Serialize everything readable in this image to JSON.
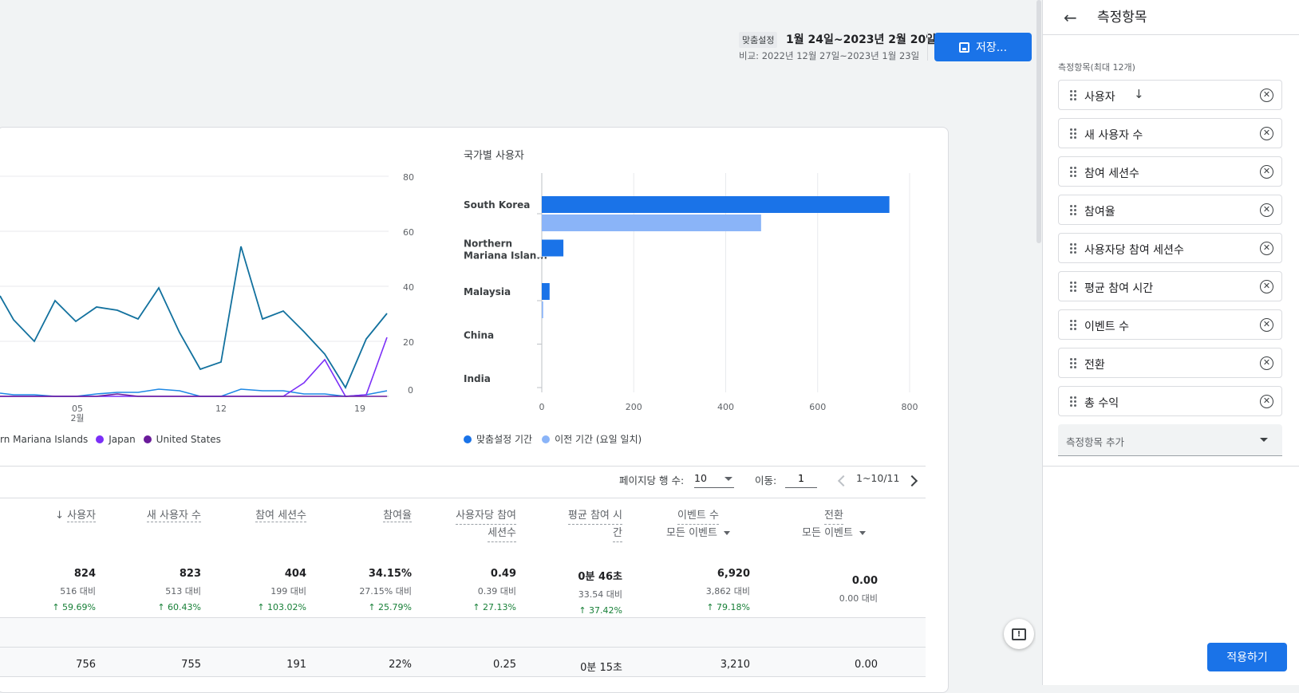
{
  "header": {
    "custom_tag": "맞춤설정",
    "date_range": "1월 24일~2023년 2월 20일",
    "compare": "비교: 2022년 12월 27일~2023년 1월 23일",
    "save_label": "저장..."
  },
  "line_chart": {
    "y_ticks": [
      "80",
      "60",
      "40",
      "20",
      "0"
    ],
    "x_ticks": [
      {
        "label": "05",
        "sub": "2월"
      },
      {
        "label": "12",
        "sub": ""
      },
      {
        "label": "19",
        "sub": ""
      }
    ],
    "legend": [
      {
        "label": "rn Mariana Islands",
        "color": "#1e88e5"
      },
      {
        "label": "Japan",
        "color": "#7b2ff7"
      },
      {
        "label": "United States",
        "color": "#6a1b9a"
      }
    ],
    "colors": {
      "south_korea": "#12719e",
      "northern_mariana": "#1e88e5",
      "japan": "#7b2ff7",
      "united_states": "#6a1b9a"
    }
  },
  "chart_data": {
    "type": "bar",
    "title": "국가별 사용자",
    "categories": [
      "South Korea",
      "Northern Mariana Islan...",
      "Malaysia",
      "China",
      "India"
    ],
    "series": [
      {
        "name": "맞춤설정 기간",
        "color": "#1a73e8",
        "values": [
          756,
          47,
          17,
          0,
          0
        ]
      },
      {
        "name": "이전 기간 (요일 일치)",
        "color": "#8ab4f8",
        "values": [
          477,
          0,
          3,
          0,
          0
        ]
      }
    ],
    "x_ticks": [
      0,
      200,
      400,
      600,
      800
    ],
    "xlim": [
      0,
      800
    ]
  },
  "pagination": {
    "rows_label": "페이지당 행 수:",
    "rows_value": "10",
    "goto_label": "이동:",
    "goto_value": "1",
    "range": "1~10/11"
  },
  "table": {
    "headers": [
      {
        "line1": "사용자",
        "line2": "",
        "sorted": true
      },
      {
        "line1": "새 사용자 수",
        "line2": ""
      },
      {
        "line1": "참여 세션수",
        "line2": ""
      },
      {
        "line1": "참여율",
        "line2": ""
      },
      {
        "line1": "사용자당 참여",
        "line2": "세션수"
      },
      {
        "line1": "평균 참여 시",
        "line2": "간"
      },
      {
        "line1": "이벤트 수",
        "line2": "모든 이벤트",
        "dropdown": true
      },
      {
        "line1": "전환",
        "line2": "모든 이벤트",
        "dropdown": true
      }
    ],
    "totals": [
      {
        "value": "824",
        "compare": "516 대비",
        "change": "59.69%"
      },
      {
        "value": "823",
        "compare": "513 대비",
        "change": "60.43%"
      },
      {
        "value": "404",
        "compare": "199 대비",
        "change": "103.02%"
      },
      {
        "value": "34.15%",
        "compare": "27.15% 대비",
        "change": "25.79%"
      },
      {
        "value": "0.49",
        "compare": "0.39 대비",
        "change": "27.13%"
      },
      {
        "value": "0분 46초",
        "compare": "33.54 대비",
        "change": "37.42%"
      },
      {
        "value": "6,920",
        "compare": "3,862 대비",
        "change": "79.18%"
      },
      {
        "value": "0.00",
        "compare": "0.00 대비",
        "change": ""
      }
    ],
    "row1": [
      "756",
      "755",
      "191",
      "22%",
      "0.25",
      "0분 15초",
      "3,210",
      "0.00"
    ]
  },
  "panel": {
    "title": "측정항목",
    "subtitle": "측정항목(최대 12개)",
    "metrics": [
      "사용자",
      "새 사용자 수",
      "참여 세션수",
      "참여율",
      "사용자당 참여 세션수",
      "평균 참여 시간",
      "이벤트 수",
      "전환",
      "총 수익"
    ],
    "add_label": "측정항목 추가",
    "apply_label": "적용하기"
  }
}
